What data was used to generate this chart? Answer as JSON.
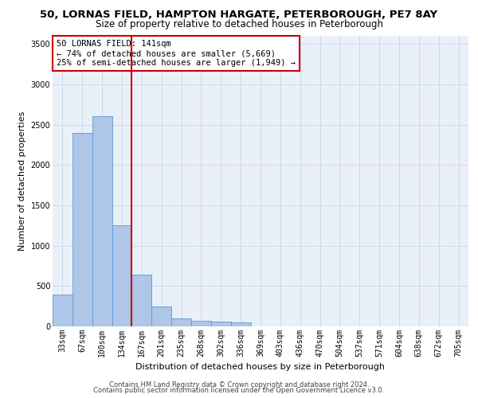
{
  "title": "50, LORNAS FIELD, HAMPTON HARGATE, PETERBOROUGH, PE7 8AY",
  "subtitle": "Size of property relative to detached houses in Peterborough",
  "xlabel": "Distribution of detached houses by size in Peterborough",
  "ylabel": "Number of detached properties",
  "categories": [
    "33sqm",
    "67sqm",
    "100sqm",
    "134sqm",
    "167sqm",
    "201sqm",
    "235sqm",
    "268sqm",
    "302sqm",
    "336sqm",
    "369sqm",
    "403sqm",
    "436sqm",
    "470sqm",
    "504sqm",
    "537sqm",
    "571sqm",
    "604sqm",
    "638sqm",
    "672sqm",
    "705sqm"
  ],
  "values": [
    390,
    2400,
    2600,
    1250,
    640,
    250,
    100,
    70,
    60,
    50,
    0,
    0,
    0,
    0,
    0,
    0,
    0,
    0,
    0,
    0,
    0
  ],
  "bar_color": "#aec6e8",
  "bar_edge_color": "#5b9bd5",
  "vline_pos": 3.5,
  "vline_color": "#cc0000",
  "annotation_text": "50 LORNAS FIELD: 141sqm\n← 74% of detached houses are smaller (5,669)\n25% of semi-detached houses are larger (1,949) →",
  "annotation_box_color": "#ffffff",
  "annotation_box_edge": "#cc0000",
  "ylim": [
    0,
    3600
  ],
  "yticks": [
    0,
    500,
    1000,
    1500,
    2000,
    2500,
    3000,
    3500
  ],
  "grid_color": "#d0d8e8",
  "background_color": "#eaf0f8",
  "footer_line1": "Contains HM Land Registry data © Crown copyright and database right 2024.",
  "footer_line2": "Contains public sector information licensed under the Open Government Licence v3.0.",
  "title_fontsize": 9.5,
  "subtitle_fontsize": 8.5,
  "tick_fontsize": 7,
  "ylabel_fontsize": 8,
  "xlabel_fontsize": 8,
  "annotation_fontsize": 7.5,
  "footer_fontsize": 6
}
